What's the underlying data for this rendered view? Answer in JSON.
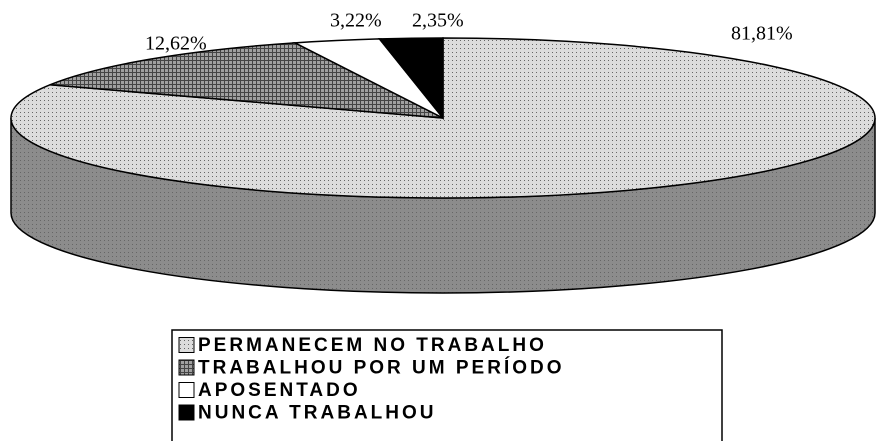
{
  "chart_data": {
    "type": "pie3d",
    "categories": [
      "PERMANECEM NO TRABALHO",
      "TRABALHOU POR UM PERÍODO",
      "APOSENTADO",
      "NUNCA TRABALHOU"
    ],
    "values": [
      81.81,
      12.62,
      3.22,
      2.35
    ],
    "value_labels": [
      "81,81%",
      "12,62%",
      "3,22%",
      "2,35%"
    ],
    "colors": [
      "#dcdcdc",
      "#a0a0a0",
      "#ffffff",
      "#000000"
    ],
    "legend": "bottom"
  }
}
